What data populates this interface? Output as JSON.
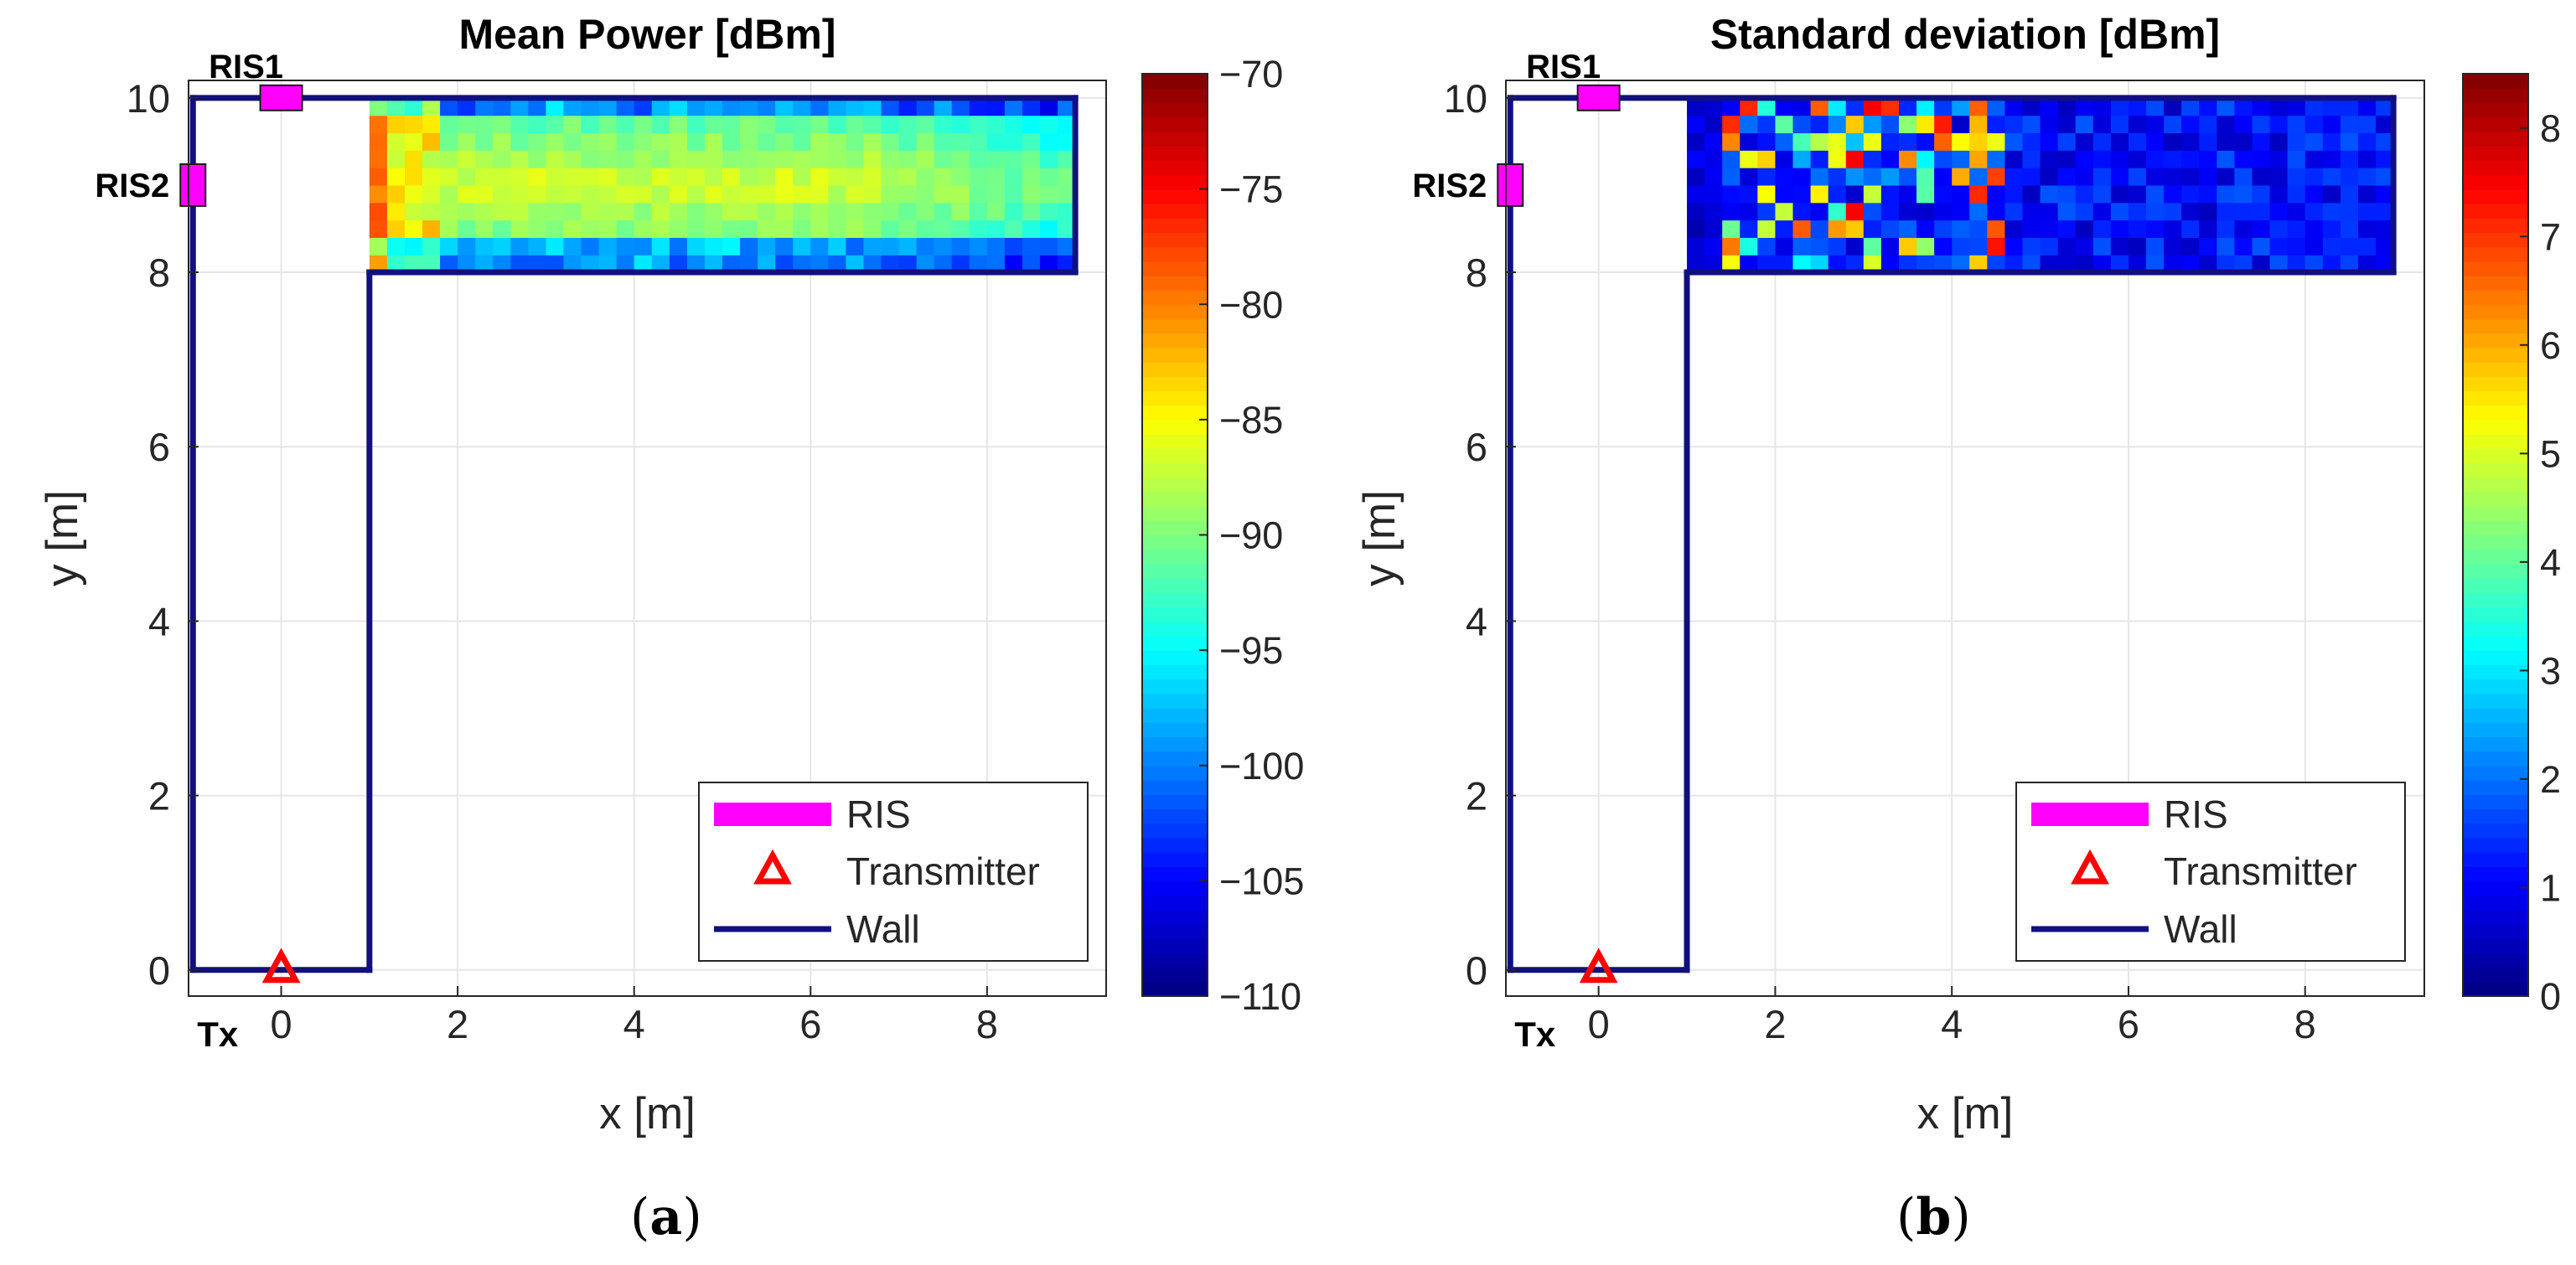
{
  "panels": [
    {
      "label_prefix": "(",
      "label_letter": "a",
      "label_suffix": ")",
      "chart_data": {
        "type": "heatmap",
        "title": "Mean Power [dBm]",
        "xlabel": "x [m]",
        "ylabel": "y [m]",
        "xlim": [
          -1.05,
          9.35
        ],
        "ylim": [
          -0.3,
          10.2
        ],
        "xticks": [
          0,
          2,
          4,
          6,
          8
        ],
        "yticks": [
          0,
          2,
          4,
          6,
          8,
          10
        ],
        "xtick_labels": [
          "0",
          "2",
          "4",
          "6",
          "8"
        ],
        "ytick_labels": [
          "0",
          "2",
          "4",
          "6",
          "8",
          "10"
        ],
        "grid": true,
        "colormap": "jet",
        "clim": [
          -110,
          -70
        ],
        "colorbar_ticks": [
          -70,
          -75,
          -80,
          -85,
          -90,
          -95,
          -100,
          -105,
          -110
        ],
        "colorbar_tick_labels": [
          "−70",
          "−75",
          "−80",
          "−85",
          "−90",
          "−95",
          "−100",
          "−105",
          "−110"
        ],
        "heatmap": {
          "x_range": [
            1,
            9
          ],
          "y_range": [
            8,
            10
          ],
          "nx": 40,
          "ny": 10,
          "value_range": [
            -108,
            -76
          ],
          "pattern": "hot near x=1 (−76 to −83), yellow-green core along y≈9 (−85 to −90), cyan/blue near walls (−93 to −108)"
        },
        "walls": [
          [
            [
              -1,
              0
            ],
            [
              1,
              0
            ]
          ],
          [
            [
              1,
              0
            ],
            [
              1,
              8
            ]
          ],
          [
            [
              1,
              8
            ],
            [
              9,
              8
            ]
          ],
          [
            [
              9,
              8
            ],
            [
              9,
              10
            ]
          ],
          [
            [
              9,
              10
            ],
            [
              -1,
              10
            ]
          ],
          [
            [
              -1,
              10
            ],
            [
              -1,
              0
            ]
          ]
        ],
        "ris": [
          {
            "name": "RIS1",
            "x": 0,
            "y": 10,
            "orientation": "horizontal"
          },
          {
            "name": "RIS2",
            "x": -1,
            "y": 9,
            "orientation": "vertical"
          }
        ],
        "transmitter": {
          "label": "Tx",
          "x": 0,
          "y": 0
        },
        "legend": {
          "position": "bottom-right",
          "entries": [
            "RIS",
            "Transmitter",
            "Wall"
          ]
        },
        "colors": {
          "wall": "#10107e",
          "ris": "#ff00ff",
          "transmitter": "#ff0000"
        }
      }
    },
    {
      "label_prefix": "(",
      "label_letter": "b",
      "label_suffix": ")",
      "chart_data": {
        "type": "heatmap",
        "title": "Standard deviation [dBm]",
        "xlabel": "x [m]",
        "ylabel": "y [m]",
        "xlim": [
          -1.05,
          9.35
        ],
        "ylim": [
          -0.3,
          10.2
        ],
        "xticks": [
          0,
          2,
          4,
          6,
          8
        ],
        "yticks": [
          0,
          2,
          4,
          6,
          8,
          10
        ],
        "xtick_labels": [
          "0",
          "2",
          "4",
          "6",
          "8"
        ],
        "ytick_labels": [
          "0",
          "2",
          "4",
          "6",
          "8",
          "10"
        ],
        "grid": true,
        "colormap": "jet",
        "clim": [
          0,
          8.5
        ],
        "colorbar_ticks": [
          8,
          7,
          6,
          5,
          4,
          3,
          2,
          1,
          0
        ],
        "colorbar_tick_labels": [
          "8",
          "7",
          "6",
          "5",
          "4",
          "3",
          "2",
          "1",
          "0"
        ],
        "heatmap": {
          "x_range": [
            1,
            9
          ],
          "y_range": [
            8,
            10
          ],
          "nx": 40,
          "ny": 10,
          "value_range": [
            0,
            8
          ],
          "pattern": "scattered high values (2–7) for x in 1.5–4.5, low (0–1.5) elsewhere"
        },
        "walls": [
          [
            [
              -1,
              0
            ],
            [
              1,
              0
            ]
          ],
          [
            [
              1,
              0
            ],
            [
              1,
              8
            ]
          ],
          [
            [
              1,
              8
            ],
            [
              9,
              8
            ]
          ],
          [
            [
              9,
              8
            ],
            [
              9,
              10
            ]
          ],
          [
            [
              9,
              10
            ],
            [
              -1,
              10
            ]
          ],
          [
            [
              -1,
              10
            ],
            [
              -1,
              0
            ]
          ]
        ],
        "ris": [
          {
            "name": "RIS1",
            "x": 0,
            "y": 10,
            "orientation": "horizontal"
          },
          {
            "name": "RIS2",
            "x": -1,
            "y": 9,
            "orientation": "vertical"
          }
        ],
        "transmitter": {
          "label": "Tx",
          "x": 0,
          "y": 0
        },
        "legend": {
          "position": "bottom-right",
          "entries": [
            "RIS",
            "Transmitter",
            "Wall"
          ]
        },
        "colors": {
          "wall": "#10107e",
          "ris": "#ff00ff",
          "transmitter": "#ff0000"
        }
      }
    }
  ]
}
